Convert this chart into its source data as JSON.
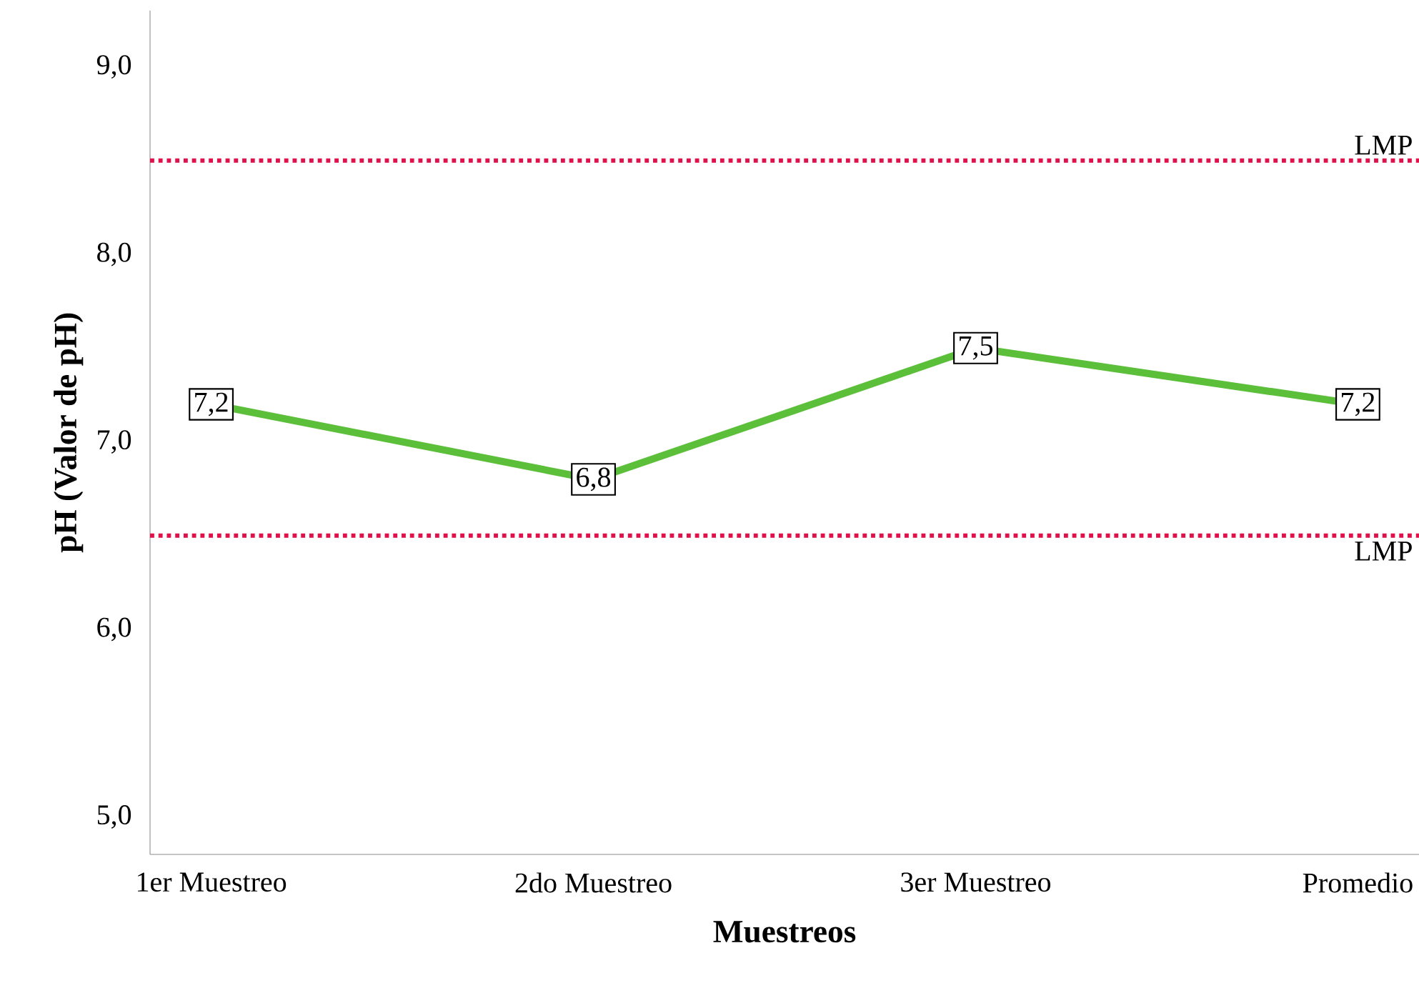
{
  "chart_data": {
    "type": "line",
    "xlabel": "Muestreos",
    "ylabel": "pH (Valor de pH)",
    "categories": [
      "1er Muestreo",
      "2do Muestreo",
      "3er Muestreo",
      "Promedio"
    ],
    "series": [
      {
        "color": "#5cbf3a",
        "values": [
          7.2,
          6.8,
          7.5,
          7.2
        ],
        "value_labels": [
          "7,2",
          "6,8",
          "7,5",
          "7,2"
        ]
      }
    ],
    "ylim": [
      4.8,
      9.3
    ],
    "yticks": [
      {
        "value": 5,
        "label": "5,0"
      },
      {
        "value": 6,
        "label": "6,0"
      },
      {
        "value": 7,
        "label": "7,0"
      },
      {
        "value": 8,
        "label": "8,0"
      },
      {
        "value": 9,
        "label": "9,0"
      }
    ],
    "ref_lines": [
      {
        "axis": "y",
        "value": 8.5,
        "label": "LMP",
        "color": "#e0114a",
        "line_style": "dotted"
      },
      {
        "axis": "y",
        "value": 6.5,
        "label": "LMP",
        "color": "#e0114a",
        "line_style": "dotted"
      }
    ],
    "grid": false,
    "marker": "square",
    "line_style": "solid"
  }
}
